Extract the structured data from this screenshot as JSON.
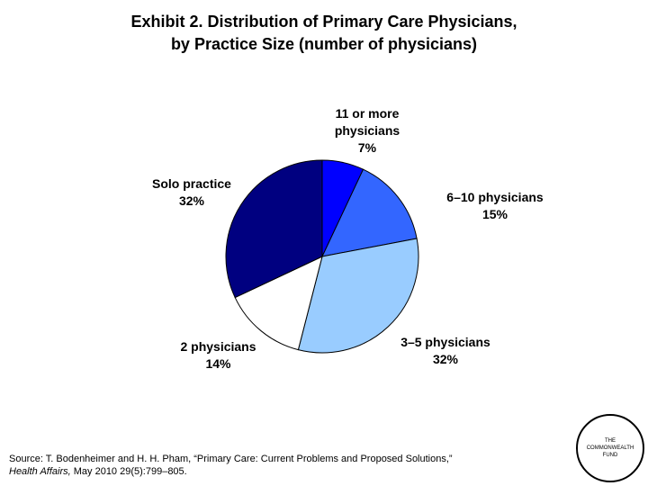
{
  "title_line1": "Exhibit 2. Distribution of Primary Care Physicians,",
  "title_line2": "by Practice Size (number of physicians)",
  "chart_data": {
    "type": "pie",
    "slices": [
      {
        "label_lines": [
          "11 or more",
          "physicians"
        ],
        "value": 7,
        "value_label": "7%",
        "color": "#0000ff"
      },
      {
        "label_lines": [
          "6–10 physicians"
        ],
        "value": 15,
        "value_label": "15%",
        "color": "#3366ff"
      },
      {
        "label_lines": [
          "3–5 physicians"
        ],
        "value": 32,
        "value_label": "32%",
        "color": "#99ccff"
      },
      {
        "label_lines": [
          "2 physicians"
        ],
        "value": 14,
        "value_label": "14%",
        "color": "#ffffff"
      },
      {
        "label_lines": [
          "Solo practice"
        ],
        "value": 32,
        "value_label": "32%",
        "color": "#000080"
      }
    ]
  },
  "source_line1": "Source: T. Bodenheimer and H. H. Pham, “Primary Care: Current Problems and Proposed Solutions,”",
  "source_journal": "Health Affairs,",
  "source_rest": " May 2010 29(5):799–805.",
  "logo_lines": [
    "THE",
    "COMMONWEALTH",
    "FUND"
  ]
}
